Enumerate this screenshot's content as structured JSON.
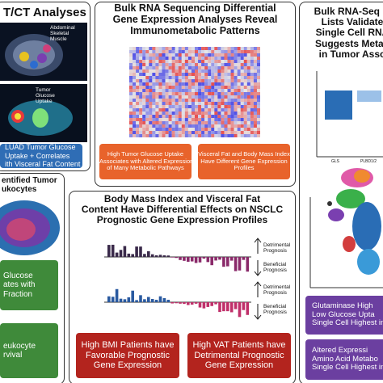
{
  "ct_panel": {
    "title": "T/CT Analyses",
    "image_labels": [
      "Abdominal Skeletal Muscle",
      "Tumor Glucose Uptake"
    ],
    "finding": [
      "LUAD Tumor Glucose",
      "Uptake + Correlates",
      "ith Visceral Fat Content"
    ]
  },
  "leukocyte_panel": {
    "title": [
      "entified Tumor",
      "ukocytes"
    ],
    "findings": [
      [
        "Glucose",
        "ates with",
        "Fraction"
      ],
      [
        "eukocyte",
        "rvival"
      ]
    ]
  },
  "rnaseq_panel": {
    "title": [
      "Bulk RNA Sequencing Differential",
      "Gene Expression Analyses Reveal",
      "Immunometabolic Patterns"
    ],
    "findings": [
      [
        "High Tumor Glucose Uptake",
        "Associates with Altered Expression",
        "of Many Metabolic Pathways"
      ],
      [
        "Visceral Fat and Body Mass Index",
        "Have Different Gene Expression",
        "Profiles"
      ]
    ]
  },
  "prognosis_panel": {
    "title": [
      "Body Mass Index and Visceral Fat",
      "Content Have Differential Effects on NSCLC",
      "Prognostic Gene Expression Profiles"
    ],
    "legend": [
      [
        "Detrimental",
        "Prognosis"
      ],
      [
        "Beneficial",
        "Prognosis"
      ]
    ],
    "findings": [
      [
        "High BMI Patients have",
        "Favorable Prognostic",
        "Gene Expression"
      ],
      [
        "High VAT Patients have",
        "Detrimental Prognostic",
        "Gene Expression"
      ]
    ]
  },
  "single_cell_panel": {
    "title": [
      "Bulk RNA-Seq M",
      "Lists Validate",
      "Single Cell RNA",
      "Suggests Metab",
      "in Tumor Asso"
    ],
    "chart_labels": [
      "GLS",
      "PLBD1/2"
    ],
    "findings": [
      [
        "Glutaminase High",
        "Low Glucose Upta",
        "Single Cell Highest in"
      ],
      [
        "Altered Expressi",
        "Amino Acid Metabo",
        "Single Cell Highest in"
      ]
    ]
  }
}
